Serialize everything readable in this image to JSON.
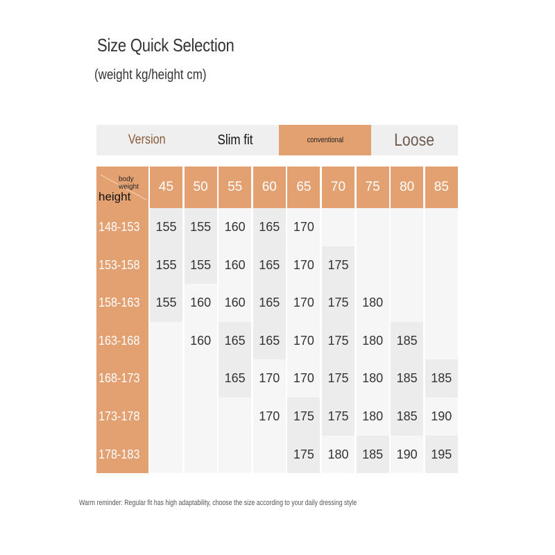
{
  "title": "Size Quick Selection",
  "subtitle": "(weight kg/height cm)",
  "version_bar": {
    "version_label": "Version",
    "slim_label": "Slim fit",
    "conventional_label": "conventional",
    "loose_label": "Loose"
  },
  "colors": {
    "accent": "#e3a172",
    "cell": "#f6f6f6",
    "cell_highlight": "#ececec"
  },
  "table": {
    "corner_top": "body weight",
    "corner_bottom": "height",
    "weights": [
      "45",
      "50",
      "55",
      "60",
      "65",
      "70",
      "75",
      "80",
      "85"
    ],
    "heights": [
      "148-153",
      "153-158",
      "158-163",
      "163-168",
      "168-173",
      "173-178",
      "178-183"
    ],
    "sizes": [
      [
        "155",
        "155",
        "160",
        "165",
        "170",
        "",
        "",
        "",
        ""
      ],
      [
        "155",
        "155",
        "160",
        "165",
        "170",
        "175",
        "",
        "",
        ""
      ],
      [
        "155",
        "160",
        "160",
        "165",
        "170",
        "175",
        "180",
        "",
        ""
      ],
      [
        "",
        "160",
        "165",
        "165",
        "170",
        "175",
        "180",
        "185",
        ""
      ],
      [
        "",
        "",
        "165",
        "170",
        "170",
        "175",
        "180",
        "185",
        "185"
      ],
      [
        "",
        "",
        "",
        "170",
        "175",
        "175",
        "180",
        "185",
        "190"
      ],
      [
        "",
        "",
        "",
        "",
        "175",
        "180",
        "185",
        "190",
        "195"
      ]
    ],
    "highlighted": [
      [
        1,
        1,
        0,
        1,
        0,
        0,
        0,
        0,
        0
      ],
      [
        1,
        1,
        0,
        1,
        0,
        1,
        0,
        0,
        0
      ],
      [
        1,
        0,
        0,
        1,
        0,
        1,
        0,
        0,
        0
      ],
      [
        0,
        0,
        1,
        1,
        0,
        1,
        0,
        1,
        0
      ],
      [
        0,
        0,
        1,
        0,
        0,
        1,
        0,
        1,
        1
      ],
      [
        0,
        0,
        0,
        0,
        1,
        1,
        0,
        1,
        0
      ],
      [
        0,
        0,
        0,
        0,
        1,
        0,
        1,
        0,
        1
      ]
    ]
  },
  "note": "Warm reminder: Regular fit has high adaptability, choose the size according to your daily dressing style"
}
